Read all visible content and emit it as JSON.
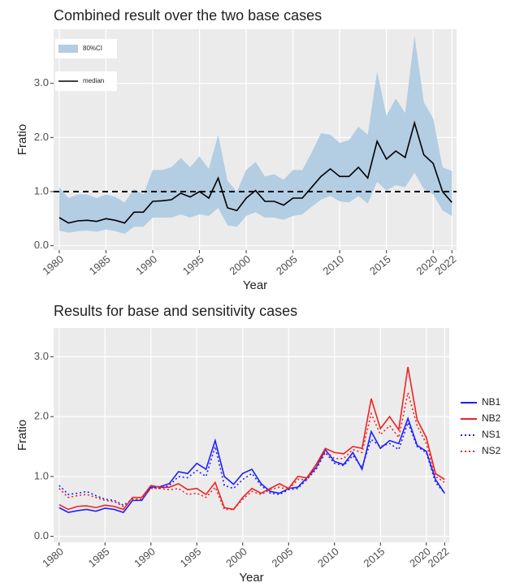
{
  "chart_data": [
    {
      "type": "line",
      "title": "Combined result over the two base cases",
      "x_label": "Year",
      "y_label": "Fratio",
      "x": [
        1980,
        1981,
        1982,
        1983,
        1984,
        1985,
        1986,
        1987,
        1988,
        1989,
        1990,
        1991,
        1992,
        1993,
        1994,
        1995,
        1996,
        1997,
        1998,
        1999,
        2000,
        2001,
        2002,
        2003,
        2004,
        2005,
        2006,
        2007,
        2008,
        2009,
        2010,
        2011,
        2012,
        2013,
        2014,
        2015,
        2016,
        2017,
        2018,
        2019,
        2020,
        2021,
        2022
      ],
      "band": {
        "name": "80%CI",
        "color": "#b3cde3",
        "upper": [
          1.08,
          0.88,
          0.95,
          0.95,
          0.88,
          0.95,
          0.9,
          0.8,
          1.05,
          0.95,
          1.4,
          1.4,
          1.45,
          1.62,
          1.45,
          1.65,
          1.42,
          2.05,
          1.2,
          1.0,
          1.4,
          1.55,
          1.28,
          1.32,
          1.22,
          1.4,
          1.4,
          1.72,
          2.08,
          2.05,
          1.9,
          1.95,
          2.2,
          2.05,
          3.22,
          2.4,
          2.72,
          2.45,
          3.88,
          2.65,
          2.35,
          1.45,
          1.38
        ],
        "lower": [
          0.28,
          0.24,
          0.27,
          0.28,
          0.26,
          0.3,
          0.27,
          0.22,
          0.35,
          0.35,
          0.52,
          0.52,
          0.52,
          0.58,
          0.52,
          0.58,
          0.55,
          0.7,
          0.38,
          0.35,
          0.55,
          0.62,
          0.52,
          0.52,
          0.48,
          0.55,
          0.58,
          0.72,
          0.85,
          0.92,
          0.82,
          0.8,
          0.92,
          0.78,
          1.18,
          1.02,
          1.12,
          1.08,
          1.35,
          1.05,
          0.95,
          0.65,
          0.55
        ]
      },
      "series": [
        {
          "name": "median",
          "color": "#000000",
          "linestyle": "solid",
          "values": [
            0.52,
            0.42,
            0.46,
            0.47,
            0.45,
            0.5,
            0.47,
            0.42,
            0.62,
            0.62,
            0.82,
            0.83,
            0.85,
            0.97,
            0.9,
            1.0,
            0.88,
            1.25,
            0.7,
            0.65,
            0.88,
            1.02,
            0.82,
            0.82,
            0.75,
            0.88,
            0.88,
            1.08,
            1.28,
            1.42,
            1.28,
            1.28,
            1.45,
            1.25,
            1.93,
            1.6,
            1.75,
            1.63,
            2.27,
            1.68,
            1.52,
            1.0,
            0.8
          ]
        }
      ],
      "reference_line": 1,
      "xlim": [
        1979.4,
        2022.5
      ],
      "xticks": [
        1980,
        1985,
        1990,
        1995,
        2000,
        2005,
        2010,
        2015,
        2020,
        2022
      ],
      "ylim": [
        -0.08,
        4.0
      ],
      "yticks": [
        {
          "value": 0,
          "label": "0.0"
        },
        {
          "value": 1,
          "label": "1.0"
        },
        {
          "value": 2,
          "label": "2.0"
        },
        {
          "value": 3,
          "label": "3.0"
        }
      ],
      "grid": true,
      "legend": "top-left"
    },
    {
      "type": "line",
      "title": "Results for base and sensitivity cases",
      "x_label": "Year",
      "y_label": "Fratio",
      "x": [
        1980,
        1981,
        1982,
        1983,
        1984,
        1985,
        1986,
        1987,
        1988,
        1989,
        1990,
        1991,
        1992,
        1993,
        1994,
        1995,
        1996,
        1997,
        1998,
        1999,
        2000,
        2001,
        2002,
        2003,
        2004,
        2005,
        2006,
        2007,
        2008,
        2009,
        2010,
        2011,
        2012,
        2013,
        2014,
        2015,
        2016,
        2017,
        2018,
        2019,
        2020,
        2021,
        2022
      ],
      "series": [
        {
          "name": "NB1",
          "color": "#1f1fff",
          "linestyle": "solid",
          "values": [
            0.48,
            0.4,
            0.43,
            0.45,
            0.42,
            0.47,
            0.45,
            0.4,
            0.6,
            0.6,
            0.82,
            0.83,
            0.88,
            1.08,
            1.05,
            1.22,
            1.12,
            1.6,
            1.0,
            0.87,
            1.05,
            1.12,
            0.88,
            0.75,
            0.72,
            0.8,
            0.82,
            0.98,
            1.15,
            1.45,
            1.25,
            1.2,
            1.4,
            1.12,
            1.75,
            1.47,
            1.6,
            1.55,
            1.97,
            1.52,
            1.42,
            0.95,
            0.72
          ]
        },
        {
          "name": "NB2",
          "color": "#ee2222",
          "linestyle": "solid",
          "values": [
            0.53,
            0.45,
            0.5,
            0.51,
            0.48,
            0.52,
            0.5,
            0.45,
            0.65,
            0.65,
            0.85,
            0.82,
            0.82,
            0.88,
            0.78,
            0.8,
            0.7,
            0.9,
            0.48,
            0.45,
            0.65,
            0.8,
            0.72,
            0.8,
            0.88,
            0.8,
            1.0,
            0.98,
            1.2,
            1.47,
            1.4,
            1.38,
            1.5,
            1.47,
            2.3,
            1.8,
            2.0,
            1.78,
            2.83,
            1.95,
            1.65,
            1.05,
            0.95
          ]
        },
        {
          "name": "NS1",
          "color": "#1f1fff",
          "linestyle": "dotted",
          "values": [
            0.85,
            0.7,
            0.72,
            0.75,
            0.68,
            0.62,
            0.6,
            0.52,
            0.62,
            0.62,
            0.82,
            0.8,
            0.85,
            1.0,
            0.98,
            1.1,
            1.0,
            1.5,
            0.85,
            0.8,
            0.95,
            1.05,
            0.85,
            0.72,
            0.7,
            0.78,
            0.8,
            0.95,
            1.12,
            1.4,
            1.22,
            1.18,
            1.35,
            1.15,
            1.62,
            1.5,
            1.55,
            1.45,
            1.9,
            1.5,
            1.4,
            0.9,
            0.72
          ]
        },
        {
          "name": "NS2",
          "color": "#ee2222",
          "linestyle": "dotted",
          "values": [
            0.8,
            0.65,
            0.68,
            0.7,
            0.65,
            0.6,
            0.58,
            0.5,
            0.62,
            0.62,
            0.8,
            0.8,
            0.78,
            0.8,
            0.7,
            0.72,
            0.65,
            0.82,
            0.45,
            0.45,
            0.62,
            0.75,
            0.7,
            0.78,
            0.82,
            0.78,
            0.95,
            0.95,
            1.15,
            1.42,
            1.3,
            1.3,
            1.45,
            1.4,
            2.05,
            1.7,
            1.85,
            1.65,
            2.4,
            1.85,
            1.55,
            1.0,
            0.9
          ]
        }
      ],
      "xlim": [
        1979.4,
        2022.5
      ],
      "xticks": [
        1980,
        1985,
        1990,
        1995,
        2000,
        2005,
        2010,
        2015,
        2020,
        2022
      ],
      "ylim": [
        -0.1,
        3.48
      ],
      "yticks": [
        {
          "value": 0,
          "label": "0.0"
        },
        {
          "value": 1,
          "label": "1.0"
        },
        {
          "value": 2,
          "label": "2.0"
        },
        {
          "value": 3,
          "label": "3.0"
        }
      ],
      "grid": true,
      "legend": "right"
    }
  ]
}
